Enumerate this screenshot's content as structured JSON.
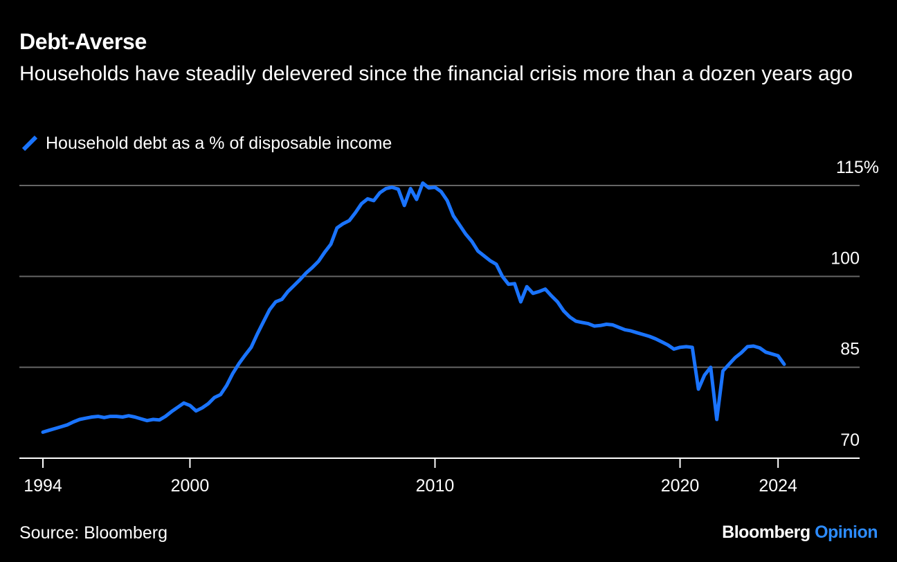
{
  "title": "Debt-Averse",
  "subtitle": "Households have steadily delevered since the financial crisis more than a dozen years ago",
  "source": "Source: Bloomberg",
  "brand": {
    "name": "Bloomberg",
    "product": "Opinion",
    "product_color": "#2d8cff"
  },
  "colors": {
    "background": "#000000",
    "series": "#1a74ff",
    "gridline": "#666666",
    "axis": "#ffffff"
  },
  "chart_data": {
    "type": "line",
    "title": "Debt-Averse",
    "subtitle": "Households have steadily delevered since the financial crisis more than a dozen years ago",
    "xlim": [
      1994,
      2024.25
    ],
    "ylim": [
      70,
      115
    ],
    "x_ticks": [
      {
        "value": 1994,
        "label": "1994"
      },
      {
        "value": 2000,
        "label": "2000"
      },
      {
        "value": 2010,
        "label": "2010"
      },
      {
        "value": 2020,
        "label": "2020"
      },
      {
        "value": 2024,
        "label": "2024"
      }
    ],
    "y_ticks": [
      {
        "value": 115,
        "label": "115%"
      },
      {
        "value": 100,
        "label": "100"
      },
      {
        "value": 85,
        "label": "85"
      },
      {
        "value": 70,
        "label": "70"
      }
    ],
    "grid": true,
    "legend": "top-left",
    "series": [
      {
        "name": "Household debt as a % of disposable income",
        "points": [
          [
            1994.0,
            74.3
          ],
          [
            1994.25,
            74.6
          ],
          [
            1994.5,
            74.9
          ],
          [
            1994.75,
            75.2
          ],
          [
            1995.0,
            75.5
          ],
          [
            1995.25,
            76.0
          ],
          [
            1995.5,
            76.4
          ],
          [
            1995.75,
            76.6
          ],
          [
            1996.0,
            76.8
          ],
          [
            1996.25,
            76.9
          ],
          [
            1996.5,
            76.7
          ],
          [
            1996.75,
            76.9
          ],
          [
            1997.0,
            76.9
          ],
          [
            1997.25,
            76.8
          ],
          [
            1997.5,
            77.0
          ],
          [
            1997.75,
            76.8
          ],
          [
            1998.0,
            76.5
          ],
          [
            1998.25,
            76.2
          ],
          [
            1998.5,
            76.4
          ],
          [
            1998.75,
            76.3
          ],
          [
            1999.0,
            76.9
          ],
          [
            1999.25,
            77.7
          ],
          [
            1999.5,
            78.4
          ],
          [
            1999.75,
            79.1
          ],
          [
            2000.0,
            78.7
          ],
          [
            2000.25,
            77.8
          ],
          [
            2000.5,
            78.3
          ],
          [
            2000.75,
            79.0
          ],
          [
            2001.0,
            80.0
          ],
          [
            2001.25,
            80.5
          ],
          [
            2001.5,
            82.0
          ],
          [
            2001.75,
            84.0
          ],
          [
            2002.0,
            85.6
          ],
          [
            2002.25,
            87.0
          ],
          [
            2002.5,
            88.3
          ],
          [
            2002.75,
            90.5
          ],
          [
            2003.0,
            92.5
          ],
          [
            2003.25,
            94.5
          ],
          [
            2003.5,
            95.8
          ],
          [
            2003.75,
            96.2
          ],
          [
            2004.0,
            97.5
          ],
          [
            2004.25,
            98.5
          ],
          [
            2004.5,
            99.5
          ],
          [
            2004.75,
            100.6
          ],
          [
            2005.0,
            101.5
          ],
          [
            2005.25,
            102.5
          ],
          [
            2005.5,
            104.0
          ],
          [
            2005.75,
            105.3
          ],
          [
            2006.0,
            108.0
          ],
          [
            2006.25,
            108.7
          ],
          [
            2006.5,
            109.2
          ],
          [
            2006.75,
            110.5
          ],
          [
            2007.0,
            112.0
          ],
          [
            2007.25,
            112.8
          ],
          [
            2007.5,
            112.5
          ],
          [
            2007.75,
            113.8
          ],
          [
            2008.0,
            114.5
          ],
          [
            2008.25,
            114.7
          ],
          [
            2008.5,
            114.4
          ],
          [
            2008.75,
            111.7
          ],
          [
            2009.0,
            114.5
          ],
          [
            2009.25,
            112.7
          ],
          [
            2009.5,
            115.4
          ],
          [
            2009.75,
            114.6
          ],
          [
            2010.0,
            114.7
          ],
          [
            2010.25,
            114.0
          ],
          [
            2010.5,
            112.5
          ],
          [
            2010.75,
            110.0
          ],
          [
            2011.0,
            108.5
          ],
          [
            2011.25,
            107.0
          ],
          [
            2011.5,
            105.8
          ],
          [
            2011.75,
            104.2
          ],
          [
            2012.0,
            103.4
          ],
          [
            2012.25,
            102.6
          ],
          [
            2012.5,
            102.0
          ],
          [
            2012.75,
            100.0
          ],
          [
            2013.0,
            98.7
          ],
          [
            2013.25,
            98.8
          ],
          [
            2013.5,
            95.8
          ],
          [
            2013.75,
            98.3
          ],
          [
            2014.0,
            97.2
          ],
          [
            2014.25,
            97.5
          ],
          [
            2014.5,
            97.9
          ],
          [
            2014.75,
            96.8
          ],
          [
            2015.0,
            95.8
          ],
          [
            2015.25,
            94.3
          ],
          [
            2015.5,
            93.3
          ],
          [
            2015.75,
            92.6
          ],
          [
            2016.0,
            92.4
          ],
          [
            2016.25,
            92.2
          ],
          [
            2016.5,
            91.8
          ],
          [
            2016.75,
            91.9
          ],
          [
            2017.0,
            92.1
          ],
          [
            2017.25,
            92.0
          ],
          [
            2017.5,
            91.6
          ],
          [
            2017.75,
            91.2
          ],
          [
            2018.0,
            91.0
          ],
          [
            2018.25,
            90.7
          ],
          [
            2018.5,
            90.4
          ],
          [
            2018.75,
            90.1
          ],
          [
            2019.0,
            89.7
          ],
          [
            2019.25,
            89.2
          ],
          [
            2019.5,
            88.7
          ],
          [
            2019.75,
            88.0
          ],
          [
            2020.0,
            88.3
          ],
          [
            2020.25,
            88.4
          ],
          [
            2020.5,
            88.3
          ],
          [
            2020.75,
            81.4
          ],
          [
            2021.0,
            83.7
          ],
          [
            2021.25,
            85.0
          ],
          [
            2021.5,
            76.4
          ],
          [
            2021.75,
            84.4
          ],
          [
            2022.0,
            85.5
          ],
          [
            2022.25,
            86.6
          ],
          [
            2022.5,
            87.4
          ],
          [
            2022.75,
            88.4
          ],
          [
            2023.0,
            88.5
          ],
          [
            2023.25,
            88.2
          ],
          [
            2023.5,
            87.5
          ],
          [
            2023.75,
            87.2
          ],
          [
            2024.0,
            86.9
          ],
          [
            2024.25,
            85.5
          ]
        ]
      }
    ]
  }
}
